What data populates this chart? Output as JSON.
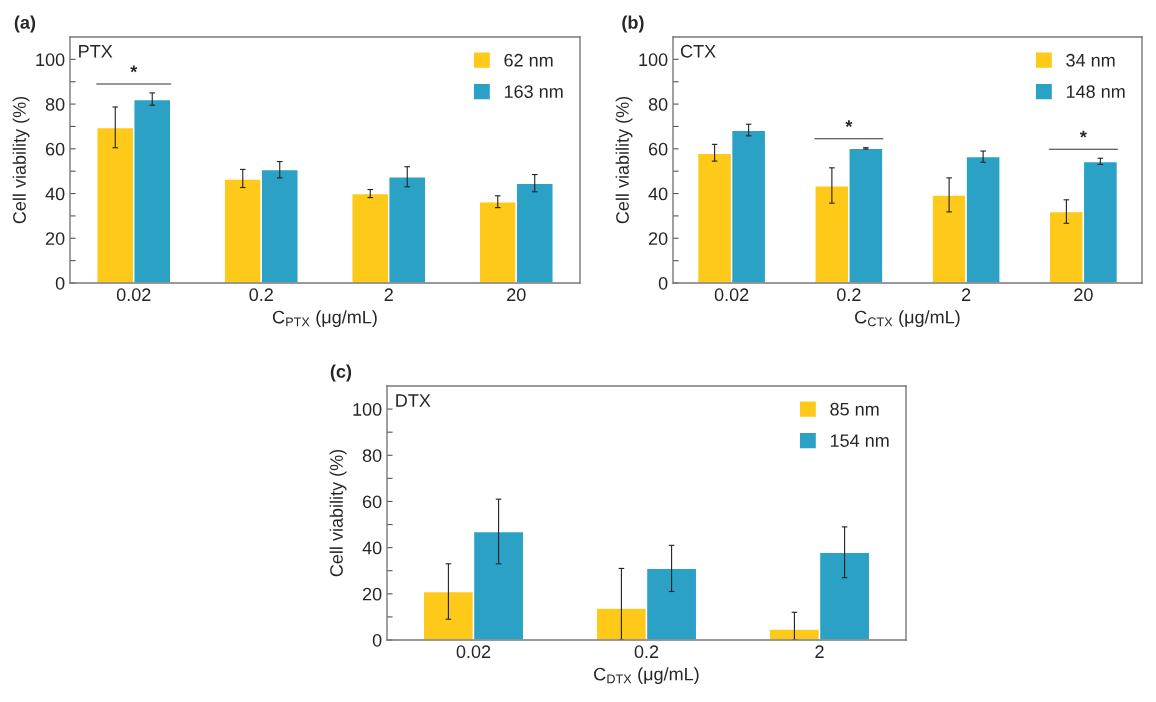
{
  "chart_data": [
    {
      "type": "bar",
      "title": "(a)",
      "xlabel": "C$_{PTX}$ (μg/mL)",
      "ylabel": "Cell viability (%)",
      "categories": [
        "0.02",
        "0.2",
        "2",
        "20"
      ],
      "series": [
        {
          "name": "62 nm",
          "color": "#fec918",
          "values": [
            69.5,
            46.5,
            40,
            36.3
          ],
          "errors": [
            [
              60.5,
              78.7
            ],
            [
              42.7,
              50.8
            ],
            [
              38.2,
              41.8
            ],
            [
              33.7,
              39
            ]
          ]
        },
        {
          "name": "163 nm",
          "color": "#2ba1c6",
          "values": [
            82,
            50.7,
            47.5,
            44.6
          ],
          "errors": [
            [
              79.5,
              85
            ],
            [
              47,
              54.3
            ],
            [
              43,
              52
            ],
            [
              40.8,
              48.5
            ]
          ]
        }
      ],
      "ylim": [
        0,
        110
      ],
      "yticks": [
        0,
        {
          "value": 10,
          "label": null
        },
        20,
        {
          "value": 30,
          "label": null
        },
        40,
        {
          "value": 50,
          "label": null
        },
        60,
        {
          "value": 70,
          "label": null
        },
        80,
        {
          "value": 90,
          "label": null
        },
        100
      ],
      "annotations": [
        "PTX",
        {
          "text": "*",
          "x": "0.02",
          "y": 82
        }
      ],
      "legend": "top right",
      "grid": false
    },
    {
      "type": "bar",
      "title": "(b)",
      "xlabel": "C$_{CTX}$ (μg/mL)",
      "ylabel": "Cell viability (%)",
      "categories": [
        "0.02",
        "0.2",
        "2",
        "20"
      ],
      "series": [
        {
          "name": "34 nm",
          "color": "#fec918",
          "values": [
            58,
            43.5,
            39.3,
            31.9
          ],
          "errors": [
            [
              54.5,
              62
            ],
            [
              35.7,
              51.5
            ],
            [
              31.8,
              47
            ],
            [
              26.7,
              37.2
            ]
          ]
        },
        {
          "name": "148 nm",
          "color": "#2ba1c6",
          "values": [
            68.3,
            60.2,
            56.5,
            54.3
          ],
          "errors": [
            [
              65.8,
              71
            ],
            [
              59.9,
              60.5
            ],
            [
              54,
              59
            ],
            [
              53,
              55.8
            ]
          ]
        }
      ],
      "ylim": [
        0,
        110
      ],
      "yticks": [
        0,
        {
          "value": 10,
          "label": null
        },
        20,
        {
          "value": 30,
          "label": null
        },
        40,
        {
          "value": 50,
          "label": null
        },
        60,
        {
          "value": 70,
          "label": null
        },
        80,
        {
          "value": 90,
          "label": null
        },
        100
      ],
      "annotations": [
        "CTX",
        {
          "text": "*",
          "x": "0.2",
          "y": 60.2
        },
        {
          "text": "*",
          "x": "20",
          "y": 54.3
        }
      ],
      "legend": "top right",
      "grid": false
    },
    {
      "type": "bar",
      "title": "(c)",
      "xlabel": "C$_{DTX}$ (μg/mL)",
      "ylabel": "Cell viability (%)",
      "categories": [
        "0.02",
        "0.2",
        "2"
      ],
      "series": [
        {
          "name": "85 nm",
          "color": "#fec918",
          "values": [
            21,
            13.8,
            4.7
          ],
          "errors": [
            [
              9,
              33
            ],
            [
              0,
              31
            ],
            [
              0,
              12
            ]
          ]
        },
        {
          "name": "154 nm",
          "color": "#2ba1c6",
          "values": [
            47,
            31,
            38
          ],
          "errors": [
            [
              33,
              61
            ],
            [
              21,
              41
            ],
            [
              27,
              49
            ]
          ]
        }
      ],
      "ylim": [
        0,
        110
      ],
      "yticks": [
        0,
        {
          "value": 10,
          "label": null
        },
        20,
        {
          "value": 30,
          "label": null
        },
        40,
        {
          "value": 50,
          "label": null
        },
        60,
        {
          "value": 70,
          "label": null
        },
        80,
        {
          "value": 90,
          "label": null
        },
        100
      ],
      "annotations": [
        "DTX"
      ],
      "legend": "top right",
      "grid": false
    }
  ]
}
